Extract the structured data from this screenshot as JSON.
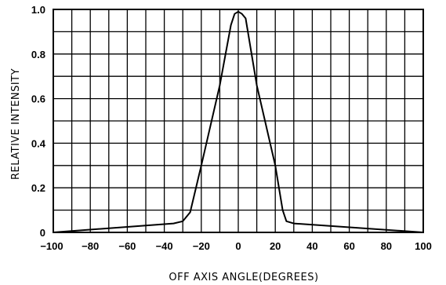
{
  "chart_data": {
    "type": "line",
    "title": "",
    "xlabel": "OFF AXIS ANGLE(DEGREES)",
    "ylabel": "RELATIVE INTENSITY",
    "xlim": [
      -100,
      100
    ],
    "ylim": [
      0,
      1.0
    ],
    "grid": true,
    "grid_x_step": 10,
    "grid_y_step": 0.1,
    "x_ticks": [
      -100,
      -80,
      -60,
      -40,
      -20,
      0,
      20,
      40,
      60,
      80,
      100
    ],
    "x_tick_labels": [
      "−100",
      "−80",
      "−60",
      "−40",
      "−20",
      "0",
      "20",
      "40",
      "60",
      "80",
      "100"
    ],
    "y_ticks": [
      0,
      0.2,
      0.4,
      0.6,
      0.8,
      1.0
    ],
    "y_tick_labels": [
      "0",
      "0.2",
      "0.4",
      "0.6",
      "0.8",
      "1.0"
    ],
    "series": [
      {
        "x": [
          -100,
          -35,
          -30,
          -26,
          -20,
          -10,
          -4,
          -2,
          0,
          2,
          4,
          10,
          20,
          24,
          26,
          30,
          100
        ],
        "y": [
          0.0,
          0.04,
          0.05,
          0.09,
          0.3,
          0.66,
          0.93,
          0.98,
          0.99,
          0.98,
          0.96,
          0.66,
          0.3,
          0.1,
          0.05,
          0.04,
          0.0
        ]
      }
    ]
  }
}
